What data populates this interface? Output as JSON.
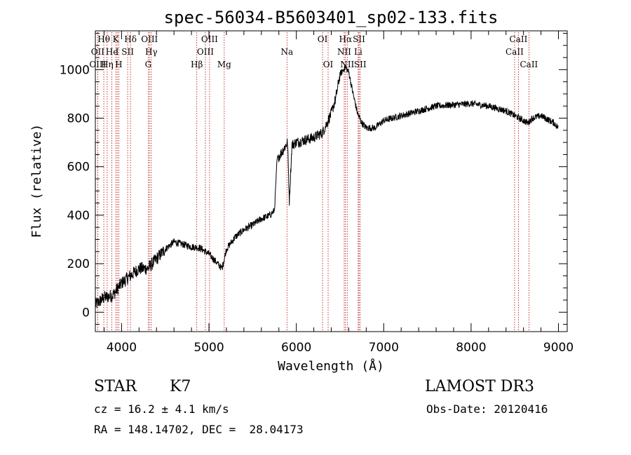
{
  "chart_data": {
    "type": "line",
    "title": "spec-56034-B5603401_sp02-133.fits",
    "xlabel": "Wavelength (Å)",
    "ylabel": "Flux (relative)",
    "xlim": [
      3700,
      9100
    ],
    "ylim": [
      -80,
      1160
    ],
    "x_ticks": [
      4000,
      5000,
      6000,
      7000,
      8000,
      9000
    ],
    "x_tick_labels": [
      "4000",
      "5000",
      "6000",
      "7000",
      "8000",
      "9000"
    ],
    "y_ticks": [
      0,
      200,
      400,
      600,
      800,
      1000
    ],
    "y_tick_labels": [
      "0",
      "200",
      "400",
      "600",
      "800",
      "1000"
    ],
    "series": [
      {
        "name": "flux",
        "x": [
          3700,
          3800,
          3900,
          4000,
          4100,
          4200,
          4300,
          4400,
          4500,
          4600,
          4700,
          4800,
          4900,
          5000,
          5100,
          5150,
          5200,
          5300,
          5400,
          5500,
          5600,
          5700,
          5750,
          5780,
          5850,
          5900,
          5920,
          5950,
          6000,
          6100,
          6200,
          6300,
          6400,
          6450,
          6500,
          6560,
          6600,
          6650,
          6700,
          6750,
          6800,
          6900,
          7000,
          7100,
          7200,
          7400,
          7600,
          7800,
          8000,
          8200,
          8400,
          8500,
          8550,
          8600,
          8650,
          8700,
          8800,
          8900,
          8950,
          9000
        ],
        "y": [
          30,
          60,
          70,
          120,
          150,
          180,
          180,
          220,
          260,
          290,
          280,
          270,
          265,
          240,
          200,
          180,
          260,
          310,
          340,
          360,
          385,
          400,
          420,
          630,
          670,
          700,
          460,
          690,
          700,
          710,
          720,
          740,
          820,
          880,
          980,
          1010,
          990,
          900,
          820,
          780,
          760,
          760,
          790,
          800,
          810,
          830,
          850,
          855,
          860,
          850,
          830,
          810,
          800,
          790,
          780,
          800,
          810,
          790,
          780,
          760
        ]
      }
    ],
    "lines": [
      {
        "label": "Hθ",
        "x": 3797,
        "row": 0
      },
      {
        "label": "OII",
        "x": 3727,
        "row": 1
      },
      {
        "label": "OIII",
        "x": 3727,
        "row": 2
      },
      {
        "label": "Hη",
        "x": 3835,
        "row": 2
      },
      {
        "label": "He",
        "x": 3889,
        "row": 1
      },
      {
        "label": "K",
        "x": 3934,
        "row": 0
      },
      {
        "label": "I",
        "x": 3950,
        "row": 1
      },
      {
        "label": "H",
        "x": 3968,
        "row": 2
      },
      {
        "label": "SII",
        "x": 4070,
        "row": 1
      },
      {
        "label": "Hδ",
        "x": 4102,
        "row": 0
      },
      {
        "label": "OIII",
        "x": 4320,
        "row": 0
      },
      {
        "label": "Hγ",
        "x": 4340,
        "row": 1
      },
      {
        "label": "G",
        "x": 4305,
        "row": 2
      },
      {
        "label": "Hβ",
        "x": 4861,
        "row": 2
      },
      {
        "label": "OIII",
        "x": 4959,
        "row": 1
      },
      {
        "label": "OIII",
        "x": 5007,
        "row": 0
      },
      {
        "label": "Mg",
        "x": 5175,
        "row": 2
      },
      {
        "label": "Na",
        "x": 5893,
        "row": 1
      },
      {
        "label": "OI",
        "x": 6300,
        "row": 0
      },
      {
        "label": "OI",
        "x": 6364,
        "row": 2
      },
      {
        "label": "Hα",
        "x": 6563,
        "row": 0
      },
      {
        "label": "NII",
        "x": 6548,
        "row": 1
      },
      {
        "label": "NII",
        "x": 6583,
        "row": 2
      },
      {
        "label": "Li",
        "x": 6708,
        "row": 1
      },
      {
        "label": "SII",
        "x": 6717,
        "row": 0
      },
      {
        "label": "SII",
        "x": 6731,
        "row": 2
      },
      {
        "label": "CaII",
        "x": 8498,
        "row": 1
      },
      {
        "label": "CaII",
        "x": 8542,
        "row": 0
      },
      {
        "label": "CaII",
        "x": 8662,
        "row": 2
      }
    ]
  },
  "info": {
    "class": "STAR",
    "subclass": "K7",
    "survey": "LAMOST DR3",
    "cz": "cz = 16.2 ± 4.1 km/s",
    "obs_date": "Obs-Date: 20120416",
    "radec": "RA = 148.14702, DEC =  28.04173"
  }
}
